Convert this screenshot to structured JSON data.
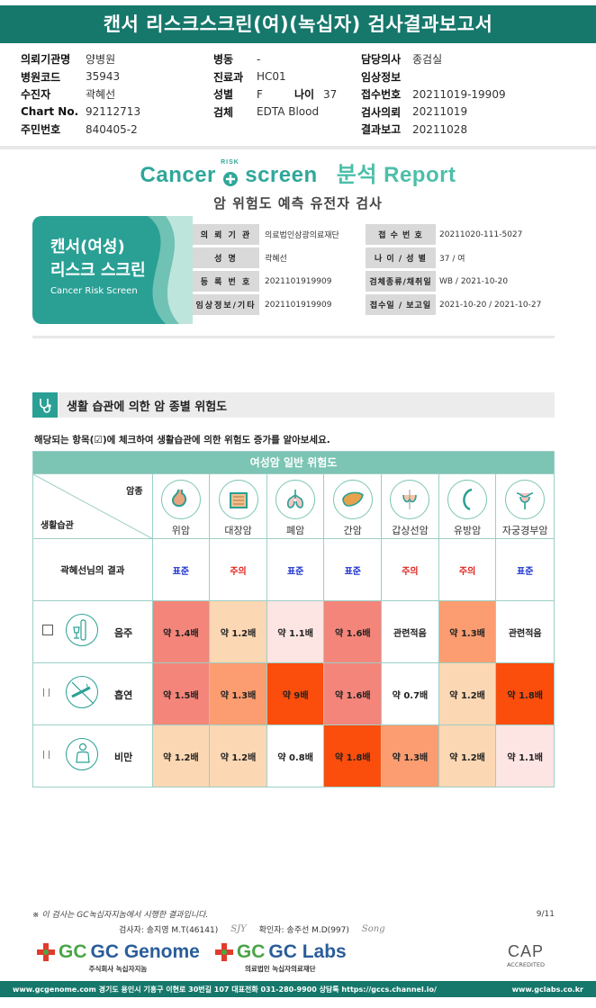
{
  "header": {
    "title": "캔서 리스크스크린(여)(녹십자) 검사결과보고서"
  },
  "info": {
    "col1": [
      {
        "label": "의뢰기관명",
        "value": "양병원"
      },
      {
        "label": "병원코드",
        "value": "35943"
      },
      {
        "label": "수진자",
        "value": "곽혜선"
      },
      {
        "label": "Chart No.",
        "value": "92112713"
      },
      {
        "label": "주민번호",
        "value": "840405-2"
      }
    ],
    "col2": [
      {
        "label": "병동",
        "value": "-"
      },
      {
        "label": "진료과",
        "value": "HC01"
      },
      {
        "label": "성별",
        "value": "F"
      },
      {
        "label": "검체",
        "value": "EDTA Blood"
      }
    ],
    "age": {
      "label": "나이",
      "value": "37"
    },
    "col3": [
      {
        "label": "담당의사",
        "value": "종검실"
      },
      {
        "label": "임상정보",
        "value": ""
      },
      {
        "label": "접수번호",
        "value": "20211019-19909"
      },
      {
        "label": "검사의뢰",
        "value": "20211019"
      },
      {
        "label": "결과보고",
        "value": "20211028"
      }
    ]
  },
  "brand": {
    "cancer": "Cancer",
    "risk": "RISK",
    "screen": "screen",
    "report": "분석 Report",
    "subtitle": "암 위험도 예측 유전자 검사"
  },
  "card": {
    "line1": "캔서(여성)",
    "line2": "리스크 스크린",
    "line3": "Cancer Risk Screen"
  },
  "report_table": [
    {
      "k1": "의 뢰 기 관",
      "v1": "의료법인삼광의료재단",
      "k2": "접 수 번 호",
      "v2": "20211020-111-5027"
    },
    {
      "k1": "성 명",
      "v1": "곽혜선",
      "k2": "나 이 / 성 별",
      "v2": "37 / 여"
    },
    {
      "k1": "등 록 번 호",
      "v1": "2021101919909",
      "k2": "검체종류/채취일",
      "v2": "WB / 2021-10-20"
    },
    {
      "k1": "임상정보/기타",
      "v1": "2021101919909",
      "k2": "접수일 / 보고일",
      "v2": "2021-10-20 / 2021-10-27"
    }
  ],
  "section": {
    "title": "생활 습관에 의한 암 종별 위험도",
    "instruction": "해당되는 항목(☑)에 체크하여 생활습관에 의한 위험도 증가를 알아보세요.",
    "table_header": "여성암 일반 위험도",
    "corner_top": "암종",
    "corner_bottom": "생활습관",
    "result_label": "곽혜선님의 결과",
    "cancers": [
      {
        "name": "위암",
        "icon": "stomach-icon",
        "result": "표준",
        "result_color": "#1a2fd0"
      },
      {
        "name": "대장암",
        "icon": "colon-icon",
        "result": "주의",
        "result_color": "#e0231c"
      },
      {
        "name": "폐암",
        "icon": "lung-icon",
        "result": "표준",
        "result_color": "#1a2fd0"
      },
      {
        "name": "간암",
        "icon": "liver-icon",
        "result": "표준",
        "result_color": "#1a2fd0"
      },
      {
        "name": "갑상선암",
        "icon": "thyroid-icon",
        "result": "주의",
        "result_color": "#e0231c"
      },
      {
        "name": "유방암",
        "icon": "breast-icon",
        "result": "주의",
        "result_color": "#e0231c"
      },
      {
        "name": "자궁경부암",
        "icon": "uterus-icon",
        "result": "표준",
        "result_color": "#1a2fd0"
      }
    ],
    "habits": [
      {
        "name": "음주",
        "icon": "alcohol-icon",
        "check": "☐",
        "values": [
          {
            "text": "약 1.4배",
            "bg": "#f4857a"
          },
          {
            "text": "약 1.2배",
            "bg": "#fcd7b3"
          },
          {
            "text": "약 1.1배",
            "bg": "#fde5e3"
          },
          {
            "text": "약 1.6배",
            "bg": "#f4857a"
          },
          {
            "text": "관련적음",
            "bg": "#ffffff"
          },
          {
            "text": "약 1.3배",
            "bg": "#fb9d70"
          },
          {
            "text": "관련적음",
            "bg": "#ffffff"
          }
        ]
      },
      {
        "name": "흡연",
        "icon": "smoking-icon",
        "check": "| |",
        "values": [
          {
            "text": "약 1.5배",
            "bg": "#f4857a"
          },
          {
            "text": "약 1.3배",
            "bg": "#fb9d70"
          },
          {
            "text": "약 9배",
            "bg": "#fb4d0c"
          },
          {
            "text": "약 1.6배",
            "bg": "#f4857a"
          },
          {
            "text": "약 0.7배",
            "bg": "#ffffff"
          },
          {
            "text": "약 1.2배",
            "bg": "#fcd7b3"
          },
          {
            "text": "약 1.8배",
            "bg": "#fb4d0c"
          }
        ]
      },
      {
        "name": "비만",
        "icon": "obesity-icon",
        "check": "| |",
        "values": [
          {
            "text": "약 1.2배",
            "bg": "#fcd7b3"
          },
          {
            "text": "약 1.2배",
            "bg": "#fcd7b3"
          },
          {
            "text": "약 0.8배",
            "bg": "#ffffff"
          },
          {
            "text": "약 1.8배",
            "bg": "#fb4d0c"
          },
          {
            "text": "약 1.3배",
            "bg": "#fb9d70"
          },
          {
            "text": "약 1.2배",
            "bg": "#fcd7b3"
          },
          {
            "text": "약 1.1배",
            "bg": "#fde5e3"
          }
        ]
      }
    ]
  },
  "footer": {
    "note": "※ 이 검사는 GC녹십자지놈에서 시행한 결과입니다.",
    "page": "9/11",
    "examiner": "검사자: 송지영 M.T(46141)",
    "confirmer": "확인자: 송주선 M.D(997)",
    "logo1": "GC Genome",
    "logo1_sub": "주식회사 녹십자지놈",
    "logo2": "GC Labs",
    "logo2_sub": "의료법인 녹십자의료재단",
    "cap": "CAP",
    "cap_sub": "ACCREDITED",
    "bottom_left": "www.gcgenome.com 경기도 용인시 기흥구 이현로 30번길 107 대표전화 031-280-9900 상담톡 https://gccs.channel.io/",
    "bottom_right": "www.gclabs.co.kr"
  },
  "colors": {
    "brand_dark": "#16776b",
    "brand": "#2aa095",
    "header_cell": "#7cc4b3"
  }
}
